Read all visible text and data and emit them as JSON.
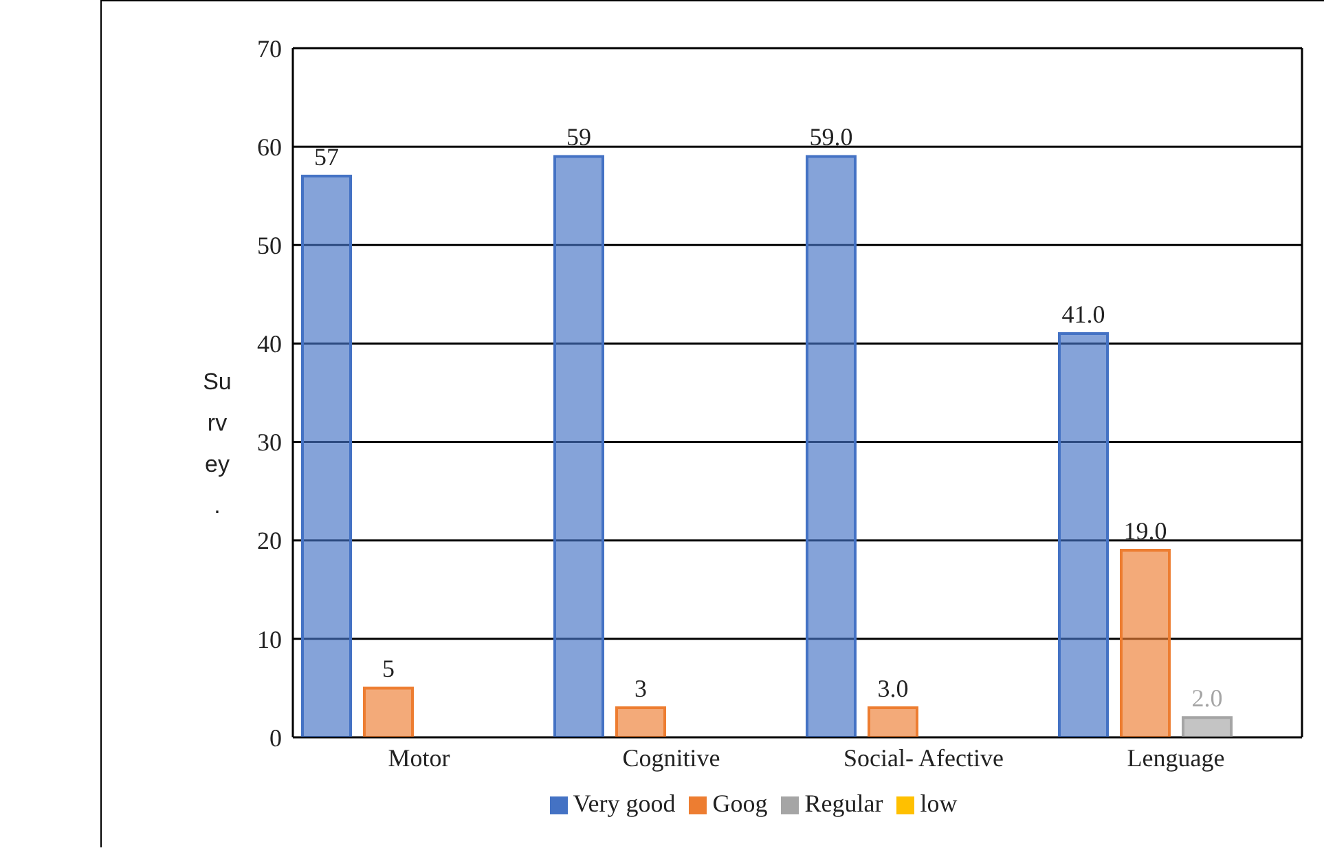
{
  "chart_data": {
    "type": "bar",
    "ylabel": "Survey.",
    "categories": [
      "Motor",
      "Cognitive",
      "Social- Afective",
      "Lenguage"
    ],
    "series": [
      {
        "name": "Very good",
        "color": "#4472c4",
        "values": [
          57,
          59,
          59,
          41
        ],
        "value_labels": [
          "57",
          "59",
          "59.0",
          "41.0"
        ]
      },
      {
        "name": "Goog",
        "color": "#ed7d31",
        "values": [
          5,
          3,
          3,
          19
        ],
        "value_labels": [
          "5",
          "3",
          "3.0",
          "19.0"
        ]
      },
      {
        "name": "Regular",
        "color": "#a5a5a5",
        "values": [
          null,
          null,
          null,
          2
        ],
        "value_labels": [
          null,
          null,
          null,
          "2.0"
        ]
      },
      {
        "name": "low",
        "color": "#ffc000",
        "values": [
          null,
          null,
          null,
          null
        ]
      }
    ],
    "ylim": [
      0,
      70
    ],
    "yticks": [
      0,
      10,
      20,
      30,
      40,
      50,
      60,
      70
    ],
    "grid": "y",
    "legend": "bottom"
  }
}
